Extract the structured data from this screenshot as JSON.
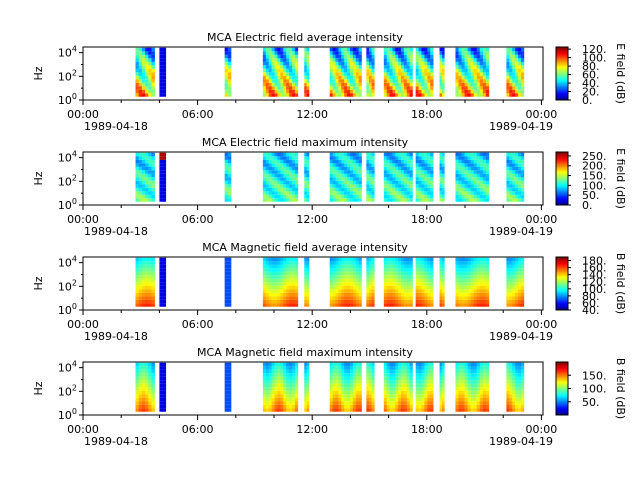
{
  "chart_data": [
    {
      "type": "heatmap",
      "title": "MCA  Electric field average intensity",
      "ylabel": "Hz",
      "y_scale": "log",
      "ylim": [
        1,
        30000
      ],
      "y_tick_labels": [
        "10^0",
        "10^2",
        "10^4"
      ],
      "x_tick_labels": [
        "00:00",
        "06:00",
        "12:00",
        "18:00",
        "00:00"
      ],
      "x_date_labels": [
        "1989-04-18",
        "1989-04-19"
      ],
      "colorbar_label": "E field (dB)",
      "colorbar_range": [
        0,
        125
      ],
      "colorbar_ticks": [
        "0.",
        "20.",
        "40.",
        "60.",
        "80.",
        "100.",
        "120."
      ],
      "colormap": "jet",
      "data_segments_utc": [
        [
          "02:45",
          "03:45"
        ],
        [
          "04:00",
          "04:20"
        ],
        [
          "07:25",
          "07:45"
        ],
        [
          "09:25",
          "11:15"
        ],
        [
          "11:35",
          "11:50"
        ],
        [
          "12:55",
          "14:35"
        ],
        [
          "14:50",
          "15:15"
        ],
        [
          "15:45",
          "17:15"
        ],
        [
          "17:25",
          "18:20"
        ],
        [
          "18:40",
          "18:55"
        ],
        [
          "19:30",
          "21:15"
        ],
        [
          "22:10",
          "23:05"
        ]
      ]
    },
    {
      "type": "heatmap",
      "title": "MCA  Electric field maximum intensity",
      "ylabel": "Hz",
      "y_scale": "log",
      "ylim": [
        1,
        30000
      ],
      "y_tick_labels": [
        "10^0",
        "10^2",
        "10^4"
      ],
      "x_tick_labels": [
        "00:00",
        "06:00",
        "12:00",
        "18:00",
        "00:00"
      ],
      "x_date_labels": [
        "1989-04-18",
        "1989-04-19"
      ],
      "colorbar_label": "E field (dB)",
      "colorbar_range": [
        0,
        270
      ],
      "colorbar_ticks": [
        "0.",
        "50.",
        "100.",
        "150.",
        "200.",
        "250."
      ],
      "colormap": "jet",
      "data_segments_utc": [
        [
          "02:45",
          "03:45"
        ],
        [
          "04:00",
          "04:20"
        ],
        [
          "07:25",
          "07:45"
        ],
        [
          "09:25",
          "11:15"
        ],
        [
          "11:35",
          "11:50"
        ],
        [
          "12:55",
          "14:35"
        ],
        [
          "14:50",
          "15:15"
        ],
        [
          "15:45",
          "17:15"
        ],
        [
          "17:25",
          "18:20"
        ],
        [
          "18:40",
          "18:55"
        ],
        [
          "19:30",
          "21:15"
        ],
        [
          "22:10",
          "23:05"
        ]
      ]
    },
    {
      "type": "heatmap",
      "title": "MCA  Magnetic field average intensity",
      "ylabel": "Hz",
      "y_scale": "log",
      "ylim": [
        1,
        30000
      ],
      "y_tick_labels": [
        "10^0",
        "10^2",
        "10^4"
      ],
      "x_tick_labels": [
        "00:00",
        "06:00",
        "12:00",
        "18:00",
        "00:00"
      ],
      "x_date_labels": [
        "1989-04-18",
        "1989-04-19"
      ],
      "colorbar_label": "B field (dB)",
      "colorbar_range": [
        40,
        190
      ],
      "colorbar_ticks": [
        "40.",
        "60.",
        "80.",
        "100.",
        "120.",
        "140.",
        "160.",
        "180."
      ],
      "colormap": "jet",
      "data_segments_utc": [
        [
          "02:45",
          "03:45"
        ],
        [
          "04:00",
          "04:20"
        ],
        [
          "07:25",
          "07:45"
        ],
        [
          "09:25",
          "11:15"
        ],
        [
          "11:35",
          "11:50"
        ],
        [
          "12:55",
          "14:35"
        ],
        [
          "14:50",
          "15:15"
        ],
        [
          "15:45",
          "17:15"
        ],
        [
          "17:25",
          "18:20"
        ],
        [
          "18:40",
          "18:55"
        ],
        [
          "19:30",
          "21:15"
        ],
        [
          "22:10",
          "23:05"
        ]
      ]
    },
    {
      "type": "heatmap",
      "title": "MCA  Magnetic field maximum intensity",
      "ylabel": "Hz",
      "y_scale": "log",
      "ylim": [
        1,
        30000
      ],
      "y_tick_labels": [
        "10^0",
        "10^2",
        "10^4"
      ],
      "x_tick_labels": [
        "00:00",
        "06:00",
        "12:00",
        "18:00",
        "00:00"
      ],
      "x_date_labels": [
        "1989-04-18",
        "1989-04-19"
      ],
      "colorbar_label": "B field (dB)",
      "colorbar_range": [
        0,
        200
      ],
      "colorbar_ticks": [
        "50.",
        "100.",
        "150."
      ],
      "colormap": "jet",
      "data_segments_utc": [
        [
          "02:45",
          "03:45"
        ],
        [
          "04:00",
          "04:20"
        ],
        [
          "07:25",
          "07:45"
        ],
        [
          "09:25",
          "11:15"
        ],
        [
          "11:35",
          "11:50"
        ],
        [
          "12:55",
          "14:35"
        ],
        [
          "14:50",
          "15:15"
        ],
        [
          "15:45",
          "17:15"
        ],
        [
          "17:25",
          "18:20"
        ],
        [
          "18:40",
          "18:55"
        ],
        [
          "19:30",
          "21:15"
        ],
        [
          "22:10",
          "23:05"
        ]
      ]
    }
  ]
}
